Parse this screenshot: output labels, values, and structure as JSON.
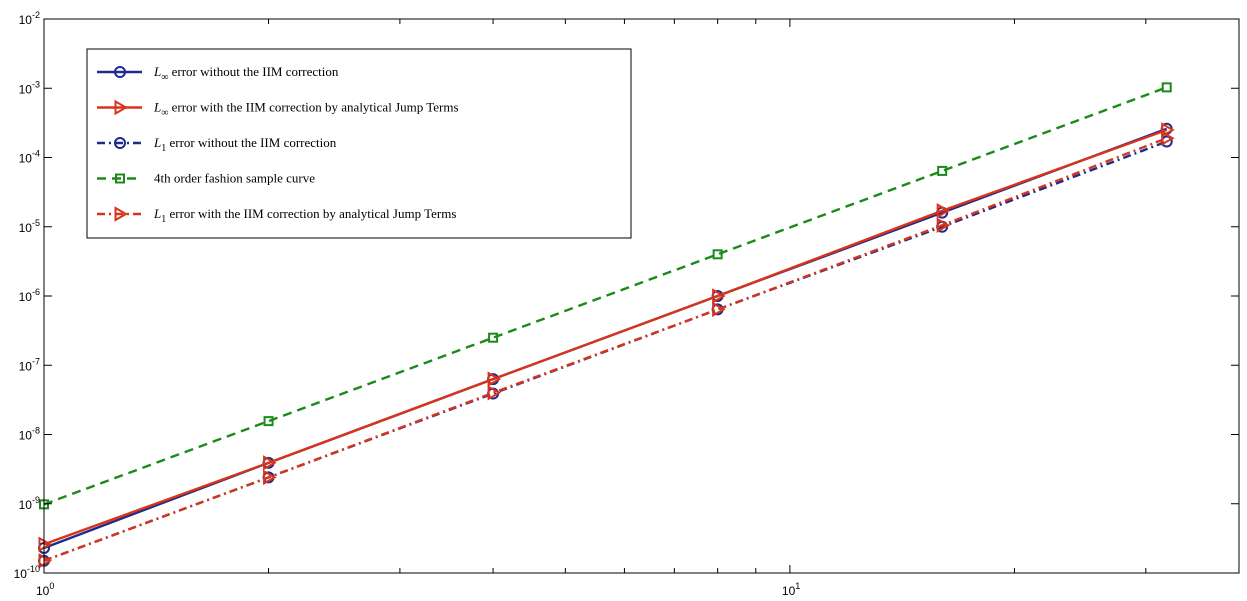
{
  "chart_data": {
    "type": "line",
    "xscale": "log",
    "yscale": "log",
    "xlim": [
      1,
      40
    ],
    "ylim": [
      1e-10,
      0.01
    ],
    "x_ticks": [
      {
        "value": 1,
        "base": "10",
        "exp": "0"
      },
      {
        "value": 10,
        "base": "10",
        "exp": "1"
      }
    ],
    "y_ticks": [
      {
        "value": 1e-10,
        "base": "10",
        "exp": "-10"
      },
      {
        "value": 1e-09,
        "base": "10",
        "exp": "-9"
      },
      {
        "value": 1e-08,
        "base": "10",
        "exp": "-8"
      },
      {
        "value": 1e-07,
        "base": "10",
        "exp": "-7"
      },
      {
        "value": 1e-06,
        "base": "10",
        "exp": "-6"
      },
      {
        "value": 1e-05,
        "base": "10",
        "exp": "-5"
      },
      {
        "value": 0.0001,
        "base": "10",
        "exp": "-4"
      },
      {
        "value": 0.001,
        "base": "10",
        "exp": "-3"
      },
      {
        "value": 0.01,
        "base": "10",
        "exp": "-2"
      }
    ],
    "grid": false,
    "legend_position": "top-left",
    "x": [
      1,
      2,
      4,
      8,
      16,
      32
    ],
    "series": [
      {
        "symbol": "L",
        "subscript": "∞",
        "name": " error without the IIM correction",
        "color": "#1f2a8c",
        "linestyle": "solid",
        "marker": "circle",
        "values": [
          2.3e-10,
          3.9e-09,
          6.3e-08,
          1e-06,
          1.6e-05,
          0.00026
        ]
      },
      {
        "symbol": "L",
        "subscript": "∞",
        "name": " error with the IIM correction by analytical Jump Terms",
        "color": "#d8341a",
        "linestyle": "solid",
        "marker": "triangle-right",
        "values": [
          2.6e-10,
          3.9e-09,
          6.3e-08,
          1e-06,
          1.7e-05,
          0.00025
        ]
      },
      {
        "symbol": "L",
        "subscript": "1",
        "name": " error without the IIM correction",
        "color": "#1f2a8c",
        "linestyle": "dashdot",
        "marker": "circle",
        "values": [
          1.5e-10,
          2.4e-09,
          3.9e-08,
          6.4e-07,
          1e-05,
          0.00017
        ]
      },
      {
        "symbol": "",
        "subscript": "",
        "name": "4th order fashion sample curve",
        "color": "#1b8a1b",
        "linestyle": "dashed",
        "marker": "square",
        "values": [
          9.8e-10,
          1.56e-08,
          2.5e-07,
          4e-06,
          6.4e-05,
          0.00103
        ]
      },
      {
        "symbol": "L",
        "subscript": "1",
        "name": " error with the IIM correction by analytical Jump Terms",
        "color": "#d8341a",
        "linestyle": "dashdot",
        "marker": "triangle-right",
        "values": [
          1.5e-10,
          2.4e-09,
          4e-08,
          6.4e-07,
          1.05e-05,
          0.00019
        ]
      }
    ]
  }
}
